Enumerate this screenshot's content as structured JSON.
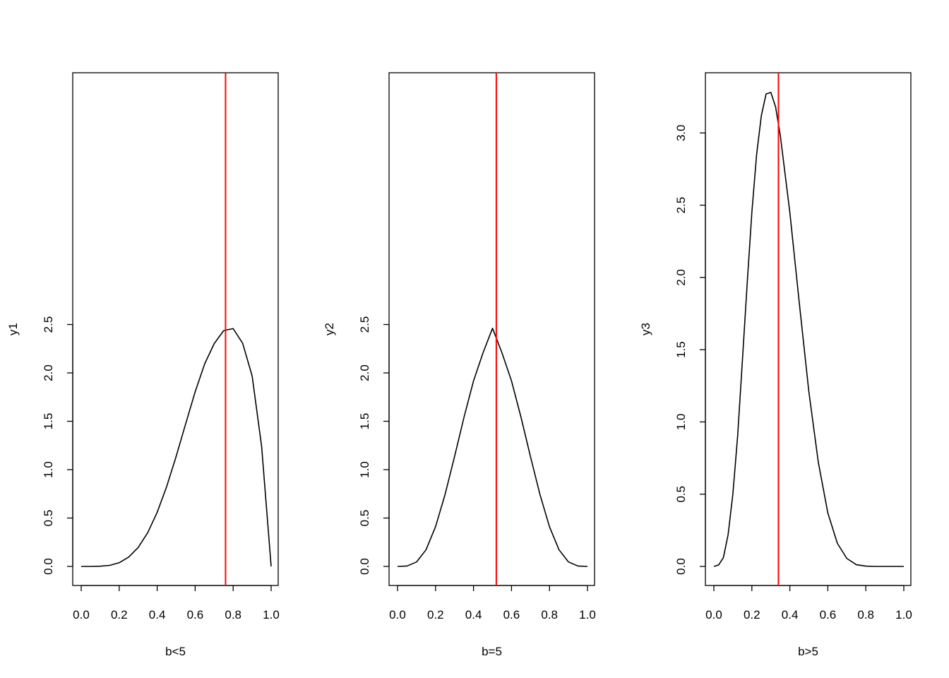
{
  "chart_data": [
    {
      "type": "line",
      "xlabel": "b<5",
      "ylabel": "y1",
      "xlim": [
        0.0,
        1.0
      ],
      "ylim": [
        0.0,
        2.5
      ],
      "x_ticks": [
        "0.0",
        "0.2",
        "0.4",
        "0.6",
        "0.8",
        "1.0"
      ],
      "y_ticks": [
        "0.0",
        "0.5",
        "1.0",
        "1.5",
        "2.0",
        "2.5"
      ],
      "grid": false,
      "line_color": "#000000",
      "vline_color": "#ff0000",
      "vline_x": 0.76,
      "series": [
        {
          "x": [
            0.0,
            0.05,
            0.1,
            0.15,
            0.2,
            0.25,
            0.3,
            0.35,
            0.4,
            0.45,
            0.5,
            0.55,
            0.6,
            0.65,
            0.7,
            0.75,
            0.8,
            0.85,
            0.9,
            0.95,
            1.0
          ],
          "values": [
            0.0,
            0.0,
            0.002,
            0.011,
            0.038,
            0.096,
            0.196,
            0.348,
            0.559,
            0.826,
            1.138,
            1.474,
            1.805,
            2.093,
            2.302,
            2.437,
            2.458,
            2.306,
            1.968,
            1.238,
            0.0
          ]
        }
      ]
    },
    {
      "type": "line",
      "xlabel": "b=5",
      "ylabel": "y2",
      "xlim": [
        0.0,
        1.0
      ],
      "ylim": [
        0.0,
        2.5
      ],
      "x_ticks": [
        "0.0",
        "0.2",
        "0.4",
        "0.6",
        "0.8",
        "1.0"
      ],
      "y_ticks": [
        "0.0",
        "0.5",
        "1.0",
        "1.5",
        "2.0",
        "2.5"
      ],
      "grid": false,
      "line_color": "#000000",
      "vline_color": "#ff0000",
      "vline_x": 0.52,
      "series": [
        {
          "x": [
            0.0,
            0.05,
            0.1,
            0.15,
            0.2,
            0.25,
            0.3,
            0.35,
            0.4,
            0.45,
            0.5,
            0.55,
            0.6,
            0.65,
            0.7,
            0.75,
            0.8,
            0.85,
            0.9,
            0.95,
            1.0
          ],
          "values": [
            0.0,
            0.004,
            0.046,
            0.172,
            0.41,
            0.742,
            1.134,
            1.542,
            1.917,
            2.207,
            2.461,
            2.207,
            1.917,
            1.542,
            1.134,
            0.742,
            0.41,
            0.172,
            0.046,
            0.004,
            0.0
          ]
        }
      ]
    },
    {
      "type": "line",
      "xlabel": "b>5",
      "ylabel": "y3",
      "xlim": [
        0.0,
        1.0
      ],
      "ylim": [
        0.0,
        3.3
      ],
      "x_ticks": [
        "0.0",
        "0.2",
        "0.4",
        "0.6",
        "0.8",
        "1.0"
      ],
      "y_ticks": [
        "0.0",
        "0.5",
        "1.0",
        "1.5",
        "2.0",
        "2.5",
        "3.0"
      ],
      "grid": false,
      "line_color": "#000000",
      "vline_color": "#ff0000",
      "vline_x": 0.34,
      "series": [
        {
          "x": [
            0.0,
            0.025,
            0.05,
            0.075,
            0.1,
            0.125,
            0.15,
            0.175,
            0.2,
            0.225,
            0.25,
            0.275,
            0.3,
            0.325,
            0.35,
            0.4,
            0.45,
            0.5,
            0.55,
            0.6,
            0.65,
            0.7,
            0.75,
            0.8,
            0.85,
            0.9,
            0.95,
            1.0
          ],
          "values": [
            0.0,
            0.01,
            0.06,
            0.22,
            0.5,
            0.9,
            1.42,
            1.95,
            2.45,
            2.85,
            3.12,
            3.27,
            3.28,
            3.18,
            2.98,
            2.45,
            1.82,
            1.21,
            0.72,
            0.37,
            0.16,
            0.055,
            0.012,
            0.002,
            0.0,
            0.0,
            0.0,
            0.0
          ]
        }
      ]
    }
  ]
}
